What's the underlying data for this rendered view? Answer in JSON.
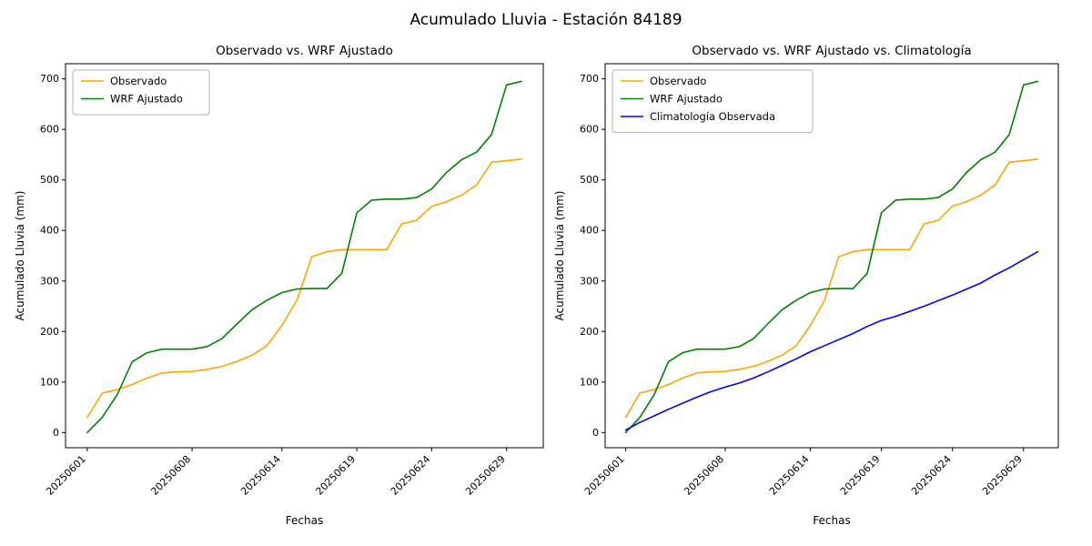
{
  "figure": {
    "title": "Acumulado Lluvia - Estación 84189"
  },
  "chart_data": [
    {
      "type": "line",
      "title": "Observado vs. WRF Ajustado",
      "xlabel": "Fechas",
      "ylabel": "Acumulado Lluvia (mm)",
      "x": [
        "20250601",
        "20250602",
        "20250603",
        "20250604",
        "20250605",
        "20250606",
        "20250607",
        "20250608",
        "20250609",
        "20250610",
        "20250611",
        "20250612",
        "20250613",
        "20250614",
        "20250615",
        "20250616",
        "20250617",
        "20250618",
        "20250619",
        "20250620",
        "20250621",
        "20250622",
        "20250623",
        "20250624",
        "20250625",
        "20250626",
        "20250627",
        "20250628",
        "20250629",
        "20250630"
      ],
      "xtick_indices": [
        0,
        7,
        13,
        18,
        23,
        28
      ],
      "yticks": [
        0,
        100,
        200,
        300,
        400,
        500,
        600,
        700
      ],
      "ylim": [
        -30,
        730
      ],
      "grid": false,
      "legend_position": "upper left",
      "series": [
        {
          "name": "Observado",
          "color": "#ffa500",
          "values": [
            30,
            78,
            85,
            95,
            108,
            118,
            120,
            121,
            125,
            131,
            141,
            153,
            172,
            212,
            262,
            348,
            358,
            362,
            362,
            362,
            362,
            413,
            420,
            448,
            457,
            470,
            490,
            535,
            538,
            541
          ]
        },
        {
          "name": "WRF Ajustado",
          "color": "#008000",
          "values": [
            0,
            30,
            75,
            140,
            158,
            165,
            165,
            165,
            170,
            186,
            215,
            243,
            262,
            277,
            284,
            285,
            285,
            315,
            435,
            460,
            462,
            462,
            465,
            482,
            515,
            540,
            555,
            590,
            688,
            695
          ]
        }
      ]
    },
    {
      "type": "line",
      "title": "Observado vs. WRF Ajustado vs. Climatología",
      "xlabel": "Fechas",
      "ylabel": "Acumulado Lluvia (mm)",
      "x": [
        "20250601",
        "20250602",
        "20250603",
        "20250604",
        "20250605",
        "20250606",
        "20250607",
        "20250608",
        "20250609",
        "20250610",
        "20250611",
        "20250612",
        "20250613",
        "20250614",
        "20250615",
        "20250616",
        "20250617",
        "20250618",
        "20250619",
        "20250620",
        "20250621",
        "20250622",
        "20250623",
        "20250624",
        "20250625",
        "20250626",
        "20250627",
        "20250628",
        "20250629",
        "20250630"
      ],
      "xtick_indices": [
        0,
        7,
        13,
        18,
        23,
        28
      ],
      "yticks": [
        0,
        100,
        200,
        300,
        400,
        500,
        600,
        700
      ],
      "ylim": [
        -30,
        730
      ],
      "grid": false,
      "legend_position": "upper left",
      "series": [
        {
          "name": "Observado",
          "color": "#ffa500",
          "values": [
            30,
            78,
            85,
            95,
            108,
            118,
            120,
            121,
            125,
            131,
            141,
            153,
            172,
            212,
            262,
            348,
            358,
            362,
            362,
            362,
            362,
            413,
            420,
            448,
            457,
            470,
            490,
            535,
            538,
            541
          ]
        },
        {
          "name": "WRF Ajustado",
          "color": "#008000",
          "values": [
            0,
            30,
            75,
            140,
            158,
            165,
            165,
            165,
            170,
            186,
            215,
            243,
            262,
            277,
            284,
            285,
            285,
            315,
            435,
            460,
            462,
            462,
            465,
            482,
            515,
            540,
            555,
            590,
            688,
            695
          ]
        },
        {
          "name": "Climatología Observada",
          "color": "#0000ff",
          "values": [
            5,
            20,
            33,
            46,
            58,
            70,
            81,
            90,
            98,
            108,
            120,
            133,
            146,
            160,
            172,
            184,
            196,
            210,
            222,
            230,
            240,
            250,
            261,
            272,
            284,
            296,
            312,
            326,
            342,
            358
          ]
        }
      ]
    }
  ]
}
